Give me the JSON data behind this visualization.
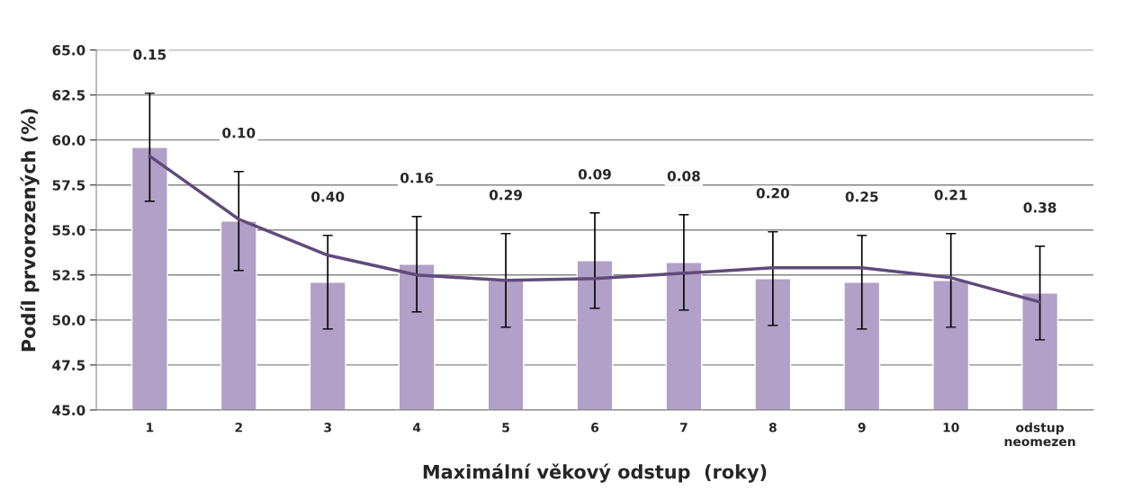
{
  "chart_data": {
    "type": "bar",
    "xlabel": "Maximální věkový odstup  (roky)",
    "ylabel": "Podíl prvorozených (%)",
    "categories": [
      "1",
      "2",
      "3",
      "4",
      "5",
      "6",
      "7",
      "8",
      "9",
      "10",
      "odstup\nneomezen"
    ],
    "series": [
      {
        "color": "#b1a0c7",
        "values": [
          59.6,
          55.5,
          52.1,
          53.1,
          52.2,
          53.3,
          53.2,
          52.3,
          52.1,
          52.2,
          51.5
        ],
        "errors": [
          3.0,
          2.75,
          2.6,
          2.65,
          2.6,
          2.65,
          2.65,
          2.6,
          2.6,
          2.6,
          2.6
        ]
      },
      {
        "type": "line",
        "color": "#604a7b",
        "values": [
          59.1,
          55.6,
          53.6,
          52.5,
          52.2,
          52.3,
          52.6,
          52.9,
          52.9,
          52.35,
          51.0
        ]
      }
    ],
    "annotations": [
      "0.15",
      "0.10",
      "0.40",
      "0.16",
      "0.29",
      "0.09",
      "0.08",
      "0.20",
      "0.25",
      "0.21",
      "0.38"
    ],
    "ylim": [
      45.0,
      65.0
    ],
    "yticks": [
      {
        "value": 45,
        "label": "45.0"
      },
      {
        "value": 47.5,
        "label": "47.5"
      },
      {
        "value": 50,
        "label": "50.0"
      },
      {
        "value": 52.5,
        "label": "52.5"
      },
      {
        "value": 55,
        "label": "55.0"
      },
      {
        "value": 57.5,
        "label": "57.5"
      },
      {
        "value": 60,
        "label": "60.0"
      },
      {
        "value": 62.5,
        "label": "62.5"
      },
      {
        "value": 65,
        "label": "65.0"
      }
    ],
    "grid": "y",
    "legend": false
  }
}
